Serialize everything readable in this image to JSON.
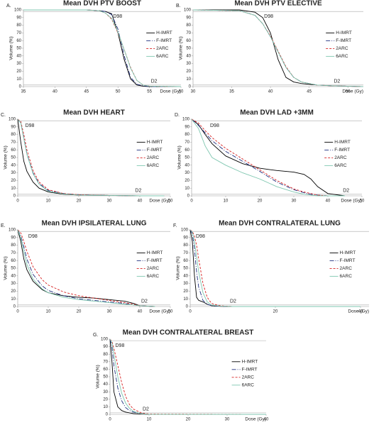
{
  "chart_data": [
    {
      "type": "line",
      "panel": "A.",
      "title": "Mean DVH PTV BOOST",
      "x_label": "Dose (Gy)",
      "y_label": "Volume (%)",
      "legend": "right",
      "x": [
        35,
        45,
        47,
        48,
        49,
        50,
        51,
        52,
        53,
        54,
        55,
        60
      ],
      "series": [
        {
          "name": "H-IMRT",
          "color": "#000000",
          "dash": "solid",
          "values": [
            100,
            100,
            99,
            98,
            95,
            70,
            35,
            10,
            2,
            0.5,
            0,
            0
          ]
        },
        {
          "name": "F-IMRT",
          "color": "#1f2f7f",
          "dash": "dashdot",
          "values": [
            100,
            100,
            99,
            98,
            94,
            75,
            40,
            12,
            3,
            1,
            0,
            0
          ]
        },
        {
          "name": "2ARC",
          "color": "#d62020",
          "dash": "dash",
          "values": [
            100,
            100,
            99,
            96,
            88,
            70,
            48,
            25,
            8,
            2,
            0.5,
            0
          ]
        },
        {
          "name": "6ARC",
          "color": "#7fc7b0",
          "dash": "solid",
          "values": [
            100,
            100,
            99,
            96,
            89,
            71,
            48,
            24,
            8,
            2,
            0.5,
            0
          ]
        }
      ],
      "annotations": [
        {
          "text": "D98",
          "x": 49,
          "y": 98
        },
        {
          "text": "D2",
          "x": 55,
          "y": 2
        }
      ],
      "xlim": [
        35,
        60
      ],
      "xticks": [
        35,
        40,
        45,
        50,
        55,
        60
      ],
      "ylim": [
        0,
        100
      ],
      "yticks": [
        0,
        10,
        20,
        30,
        40,
        50,
        60,
        70,
        80,
        90,
        100
      ]
    },
    {
      "type": "line",
      "panel": "B.",
      "title": "Mean DVH PTV ELECTIVE",
      "x_label": "Dose (Gy)",
      "y_label": "Volume (%)",
      "legend": "right",
      "x": [
        30,
        36,
        38,
        39,
        40,
        41,
        42,
        43,
        44,
        46,
        48,
        52
      ],
      "series": [
        {
          "name": "H-IMRT",
          "color": "#000000",
          "dash": "solid",
          "values": [
            100,
            100,
            97,
            90,
            70,
            35,
            12,
            6,
            4,
            2,
            1,
            0
          ]
        },
        {
          "name": "F-IMRT",
          "color": "#1f2f7f",
          "dash": "dashdot",
          "values": [
            100,
            99,
            93,
            82,
            65,
            45,
            25,
            12,
            6,
            2,
            1,
            0
          ]
        },
        {
          "name": "2ARC",
          "color": "#d62020",
          "dash": "dash",
          "values": [
            100,
            99,
            93,
            82,
            66,
            46,
            26,
            12,
            6,
            2,
            1,
            0
          ]
        },
        {
          "name": "6ARC",
          "color": "#7fc7b0",
          "dash": "solid",
          "values": [
            100,
            99,
            93,
            82,
            65,
            45,
            25,
            12,
            6,
            2,
            1,
            0
          ]
        }
      ],
      "annotations": [
        {
          "text": "D98",
          "x": 39,
          "y": 98
        },
        {
          "text": "D2",
          "x": 48,
          "y": 2
        }
      ],
      "xlim": [
        30,
        52
      ],
      "xticks": [
        30,
        35,
        40,
        45,
        50
      ],
      "ylim": [
        0,
        100
      ],
      "yticks": [
        0,
        10,
        20,
        30,
        40,
        50,
        60,
        70,
        80,
        90,
        100
      ]
    },
    {
      "type": "line",
      "panel": "C.",
      "title": "Mean DVH HEART",
      "x_label": "Dose (Gy)",
      "y_label": "Volume (%)",
      "legend": "right",
      "x": [
        0,
        1,
        2,
        3,
        5,
        7,
        10,
        15,
        20,
        30,
        40,
        48
      ],
      "series": [
        {
          "name": "H-IMRT",
          "color": "#000000",
          "dash": "solid",
          "values": [
            100,
            70,
            45,
            32,
            18,
            10,
            5,
            2,
            1,
            0.5,
            0,
            0
          ]
        },
        {
          "name": "F-IMRT",
          "color": "#1f2f7f",
          "dash": "dashdot",
          "values": [
            100,
            95,
            75,
            55,
            30,
            16,
            7,
            3,
            1.5,
            0.5,
            0,
            0
          ]
        },
        {
          "name": "2ARC",
          "color": "#d62020",
          "dash": "dash",
          "values": [
            100,
            97,
            80,
            60,
            33,
            18,
            8,
            3,
            1.5,
            0.5,
            0,
            0
          ]
        },
        {
          "name": "6ARC",
          "color": "#7fc7b0",
          "dash": "solid",
          "values": [
            100,
            95,
            74,
            54,
            29,
            15,
            6,
            2.5,
            1,
            0.5,
            0,
            0
          ]
        }
      ],
      "annotations": [
        {
          "text": "D98",
          "x": 2,
          "y": 98
        },
        {
          "text": "D2",
          "x": 38,
          "y": 2
        }
      ],
      "xlim": [
        0,
        50
      ],
      "xticks": [
        0,
        10,
        20,
        30,
        40,
        50
      ],
      "ylim": [
        0,
        100
      ],
      "yticks": [
        0,
        10,
        20,
        30,
        40,
        50,
        60,
        70,
        80,
        90,
        100
      ]
    },
    {
      "type": "line",
      "panel": "D.",
      "title": "Mean DVH LAD +3MM",
      "x_label": "Dose (Gy)",
      "y_label": "Volume (%)",
      "legend": "right",
      "x": [
        0,
        2,
        4,
        6,
        10,
        15,
        20,
        25,
        30,
        33,
        35,
        37,
        40,
        45
      ],
      "series": [
        {
          "name": "H-IMRT",
          "color": "#000000",
          "dash": "solid",
          "values": [
            100,
            93,
            80,
            68,
            52,
            42,
            36,
            33,
            31,
            28,
            22,
            12,
            3,
            0
          ]
        },
        {
          "name": "F-IMRT",
          "color": "#1f2f7f",
          "dash": "dashdot",
          "values": [
            100,
            92,
            82,
            72,
            58,
            45,
            32,
            18,
            8,
            4,
            2,
            1,
            0,
            0
          ]
        },
        {
          "name": "2ARC",
          "color": "#d62020",
          "dash": "dash",
          "values": [
            100,
            95,
            85,
            76,
            62,
            48,
            34,
            20,
            9,
            5,
            3,
            1,
            0,
            0
          ]
        },
        {
          "name": "6ARC",
          "color": "#7fc7b0",
          "dash": "solid",
          "values": [
            100,
            88,
            65,
            50,
            40,
            30,
            22,
            12,
            5,
            2,
            1,
            0,
            0,
            0
          ]
        }
      ],
      "annotations": [
        {
          "text": "D98",
          "x": 5,
          "y": 98
        },
        {
          "text": "D2",
          "x": 44,
          "y": 2
        }
      ],
      "xlim": [
        0,
        50
      ],
      "xticks": [
        0,
        10,
        20,
        30,
        40,
        50
      ],
      "ylim": [
        0,
        100
      ],
      "yticks": [
        0,
        10,
        20,
        30,
        40,
        50,
        60,
        70,
        80,
        90,
        100
      ]
    },
    {
      "type": "line",
      "panel": "E.",
      "title": "Mean DVH IPSILATERAL LUNG",
      "x_label": "Dose (Gy)",
      "y_label": "Volume (%)",
      "legend": "right",
      "x": [
        0,
        1,
        2,
        3,
        5,
        8,
        10,
        15,
        20,
        25,
        30,
        35,
        38,
        40,
        45
      ],
      "series": [
        {
          "name": "H-IMRT",
          "color": "#000000",
          "dash": "solid",
          "values": [
            100,
            85,
            62,
            48,
            33,
            22,
            18,
            14,
            12,
            11,
            9,
            7,
            4,
            1,
            0
          ]
        },
        {
          "name": "F-IMRT",
          "color": "#1f2f7f",
          "dash": "dashdot",
          "values": [
            100,
            92,
            78,
            62,
            42,
            27,
            21,
            14,
            10,
            8,
            6,
            4,
            2,
            1,
            0
          ]
        },
        {
          "name": "2ARC",
          "color": "#d62020",
          "dash": "dash",
          "values": [
            100,
            96,
            85,
            72,
            52,
            35,
            28,
            19,
            14,
            11,
            8,
            5,
            3,
            1,
            0
          ]
        },
        {
          "name": "6ARC",
          "color": "#7fc7b0",
          "dash": "solid",
          "values": [
            100,
            90,
            72,
            55,
            36,
            23,
            18,
            12,
            9,
            7,
            5,
            3,
            2,
            1,
            0
          ]
        }
      ],
      "annotations": [
        {
          "text": "D98",
          "x": 3,
          "y": 98
        },
        {
          "text": "D2",
          "x": 40,
          "y": 2
        }
      ],
      "xlim": [
        0,
        50
      ],
      "xticks": [
        0,
        10,
        20,
        30,
        40,
        50
      ],
      "ylim": [
        0,
        100
      ],
      "yticks": [
        0,
        10,
        20,
        30,
        40,
        50,
        60,
        70,
        80,
        90,
        100
      ]
    },
    {
      "type": "line",
      "panel": "F.",
      "title": "Mean DVH CONTRALATERAL LUNG",
      "x_label": "Dose (Gy)",
      "y_label": "Volume (%)",
      "legend": "right",
      "x": [
        0,
        0.5,
        1,
        1.5,
        2,
        3,
        4,
        5,
        7,
        10,
        40
      ],
      "series": [
        {
          "name": "H-IMRT",
          "color": "#000000",
          "dash": "solid",
          "values": [
            100,
            85,
            40,
            12,
            8,
            6,
            3,
            1,
            0.3,
            0,
            0
          ]
        },
        {
          "name": "F-IMRT",
          "color": "#1f2f7f",
          "dash": "dashdot",
          "values": [
            100,
            95,
            75,
            45,
            25,
            8,
            3,
            1,
            0.3,
            0,
            0
          ]
        },
        {
          "name": "2ARC",
          "color": "#d62020",
          "dash": "dash",
          "values": [
            100,
            98,
            92,
            80,
            62,
            30,
            12,
            4,
            1,
            0,
            0
          ]
        },
        {
          "name": "6ARC",
          "color": "#7fc7b0",
          "dash": "solid",
          "values": [
            100,
            97,
            85,
            65,
            45,
            18,
            6,
            2,
            0.5,
            0,
            0
          ]
        }
      ],
      "annotations": [
        {
          "text": "D98",
          "x": 1,
          "y": 98
        },
        {
          "text": "D2",
          "x": 9,
          "y": 2
        }
      ],
      "xlim": [
        0,
        42
      ],
      "xticks": [
        0,
        20,
        40
      ],
      "ylim": [
        0,
        100
      ],
      "yticks": [
        0,
        10,
        20,
        30,
        40,
        50,
        60,
        70,
        80,
        90,
        100
      ]
    },
    {
      "type": "line",
      "panel": "G.",
      "title": "Mean DVH CONTRALATERAL BREAST",
      "x_label": "Dose (Gy)",
      "y_label": "Volume (%)",
      "legend": "right",
      "x": [
        0,
        0.5,
        1,
        2,
        3,
        4,
        5,
        6,
        8,
        10,
        40
      ],
      "series": [
        {
          "name": "H-IMRT",
          "color": "#000000",
          "dash": "solid",
          "values": [
            100,
            70,
            30,
            10,
            5,
            3,
            2,
            1,
            0.5,
            0,
            0
          ]
        },
        {
          "name": "F-IMRT",
          "color": "#1f2f7f",
          "dash": "dashdot",
          "values": [
            100,
            90,
            65,
            35,
            18,
            9,
            5,
            3,
            1,
            0,
            0
          ]
        },
        {
          "name": "2ARC",
          "color": "#d62020",
          "dash": "dash",
          "values": [
            100,
            97,
            88,
            65,
            42,
            24,
            13,
            7,
            2,
            0.5,
            0
          ]
        },
        {
          "name": "6ARC",
          "color": "#7fc7b0",
          "dash": "solid",
          "values": [
            100,
            95,
            80,
            50,
            28,
            15,
            8,
            4,
            1,
            0,
            0
          ]
        }
      ],
      "annotations": [
        {
          "text": "D98",
          "x": 1,
          "y": 98
        },
        {
          "text": "D2",
          "x": 8,
          "y": 2
        }
      ],
      "xlim": [
        0,
        40
      ],
      "xticks": [
        0,
        10,
        20,
        30,
        40
      ],
      "ylim": [
        0,
        100
      ],
      "yticks": [
        0,
        10,
        20,
        30,
        40,
        50,
        60,
        70,
        80,
        90,
        100
      ]
    }
  ]
}
